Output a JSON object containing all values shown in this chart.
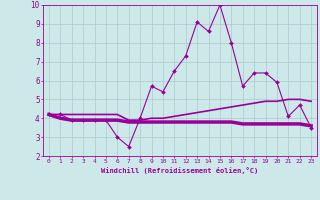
{
  "xlabel": "Windchill (Refroidissement éolien,°C)",
  "x_values": [
    0,
    1,
    2,
    3,
    4,
    5,
    6,
    7,
    8,
    9,
    10,
    11,
    12,
    13,
    14,
    15,
    16,
    17,
    18,
    19,
    20,
    21,
    22,
    23
  ],
  "line1_y": [
    4.2,
    4.2,
    3.9,
    3.9,
    3.9,
    3.9,
    3.0,
    2.5,
    4.0,
    5.7,
    5.4,
    6.5,
    7.3,
    9.1,
    8.6,
    10.0,
    8.0,
    5.7,
    6.4,
    6.4,
    5.9,
    4.1,
    4.7,
    3.5
  ],
  "line2_y": [
    4.2,
    4.2,
    4.2,
    4.2,
    4.2,
    4.2,
    4.2,
    3.9,
    3.9,
    4.0,
    4.0,
    4.1,
    4.2,
    4.3,
    4.4,
    4.5,
    4.6,
    4.7,
    4.8,
    4.9,
    4.9,
    5.0,
    5.0,
    4.9
  ],
  "line3_y": [
    4.2,
    4.0,
    3.9,
    3.9,
    3.9,
    3.9,
    3.9,
    3.8,
    3.8,
    3.8,
    3.8,
    3.8,
    3.8,
    3.8,
    3.8,
    3.8,
    3.8,
    3.7,
    3.7,
    3.7,
    3.7,
    3.7,
    3.7,
    3.6
  ],
  "line_color": "#990099",
  "bg_color": "#cce8e8",
  "grid_color": "#aacccc",
  "tick_color": "#990099",
  "ylim": [
    2,
    10
  ],
  "xlim": [
    -0.5,
    23.5
  ],
  "yticks": [
    2,
    3,
    4,
    5,
    6,
    7,
    8,
    9,
    10
  ]
}
